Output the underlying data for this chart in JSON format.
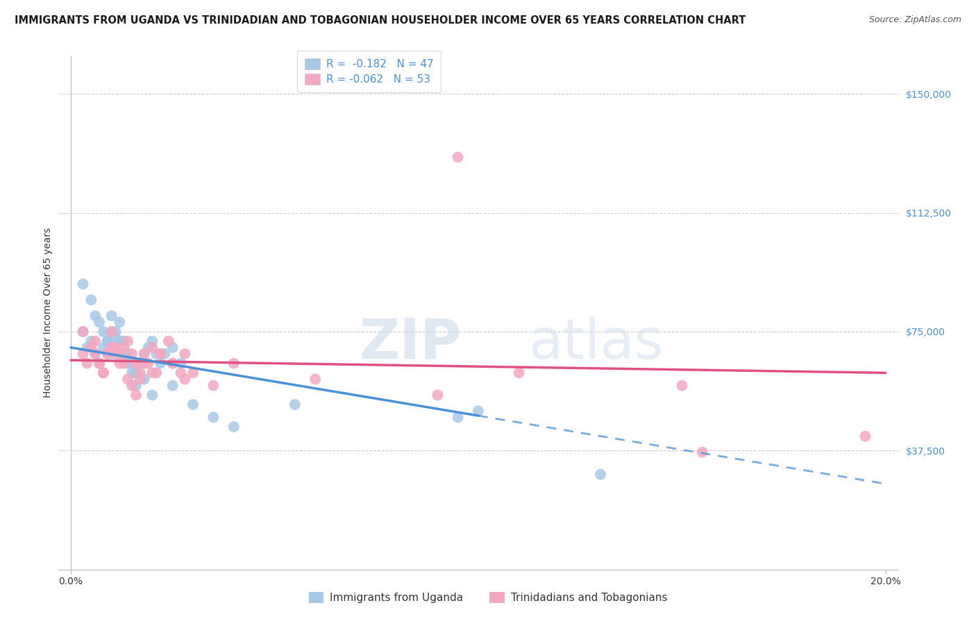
{
  "title": "IMMIGRANTS FROM UGANDA VS TRINIDADIAN AND TOBAGONIAN HOUSEHOLDER INCOME OVER 65 YEARS CORRELATION CHART",
  "source": "Source: ZipAtlas.com",
  "ylabel": "Householder Income Over 65 years",
  "yticks": [
    0,
    37500,
    75000,
    112500,
    150000
  ],
  "ytick_labels": [
    "",
    "$37,500",
    "$75,000",
    "$112,500",
    "$150,000"
  ],
  "xlim": [
    0.0,
    0.2
  ],
  "ylim": [
    0,
    162000
  ],
  "watermark_zip": "ZIP",
  "watermark_atlas": "atlas",
  "legend1_label": "R =  -0.182   N = 47",
  "legend2_label": "R = -0.062   N = 53",
  "legend1_color": "#a8c8e8",
  "legend2_color": "#f4a8c0",
  "line1_color": "#4a90d9",
  "line2_color": "#e05080",
  "uganda_color": "#a8c8e8",
  "tt_color": "#f4a8c0",
  "scatter_legend1": "Immigrants from Uganda",
  "scatter_legend2": "Trinidadians and Tobagonians",
  "title_fontsize": 10.5,
  "source_fontsize": 9,
  "axis_label_fontsize": 10,
  "tick_fontsize": 10,
  "legend_fontsize": 11,
  "background_color": "#ffffff",
  "grid_color": "#cccccc",
  "uganda_x": [
    0.003,
    0.004,
    0.005,
    0.006,
    0.007,
    0.008,
    0.009,
    0.01,
    0.01,
    0.011,
    0.012,
    0.013,
    0.014,
    0.015,
    0.016,
    0.017,
    0.018,
    0.019,
    0.02,
    0.021,
    0.022,
    0.023,
    0.025,
    0.027,
    0.003,
    0.005,
    0.006,
    0.007,
    0.008,
    0.009,
    0.01,
    0.011,
    0.012,
    0.013,
    0.014,
    0.015,
    0.016,
    0.018,
    0.02,
    0.025,
    0.03,
    0.035,
    0.04,
    0.055,
    0.095,
    0.1,
    0.13
  ],
  "uganda_y": [
    75000,
    70000,
    72000,
    68000,
    65000,
    70000,
    72000,
    75000,
    68000,
    73000,
    78000,
    72000,
    68000,
    65000,
    62000,
    65000,
    68000,
    70000,
    72000,
    68000,
    65000,
    68000,
    70000,
    65000,
    90000,
    85000,
    80000,
    78000,
    75000,
    72000,
    80000,
    75000,
    72000,
    68000,
    65000,
    62000,
    58000,
    60000,
    55000,
    58000,
    52000,
    48000,
    45000,
    52000,
    48000,
    50000,
    30000
  ],
  "tt_x": [
    0.003,
    0.004,
    0.005,
    0.006,
    0.007,
    0.008,
    0.009,
    0.01,
    0.011,
    0.012,
    0.013,
    0.014,
    0.015,
    0.016,
    0.017,
    0.018,
    0.019,
    0.02,
    0.021,
    0.022,
    0.024,
    0.025,
    0.027,
    0.028,
    0.003,
    0.005,
    0.006,
    0.007,
    0.008,
    0.009,
    0.01,
    0.011,
    0.012,
    0.013,
    0.014,
    0.015,
    0.016,
    0.017,
    0.018,
    0.02,
    0.022,
    0.025,
    0.028,
    0.03,
    0.035,
    0.04,
    0.06,
    0.09,
    0.095,
    0.11,
    0.15,
    0.155,
    0.195
  ],
  "tt_y": [
    68000,
    65000,
    70000,
    72000,
    65000,
    62000,
    68000,
    70000,
    68000,
    65000,
    70000,
    72000,
    68000,
    65000,
    62000,
    68000,
    65000,
    70000,
    62000,
    68000,
    72000,
    65000,
    62000,
    68000,
    75000,
    70000,
    68000,
    65000,
    62000,
    68000,
    75000,
    70000,
    68000,
    65000,
    60000,
    58000,
    55000,
    60000,
    65000,
    62000,
    68000,
    65000,
    60000,
    62000,
    58000,
    65000,
    60000,
    55000,
    130000,
    62000,
    58000,
    37000,
    42000
  ]
}
